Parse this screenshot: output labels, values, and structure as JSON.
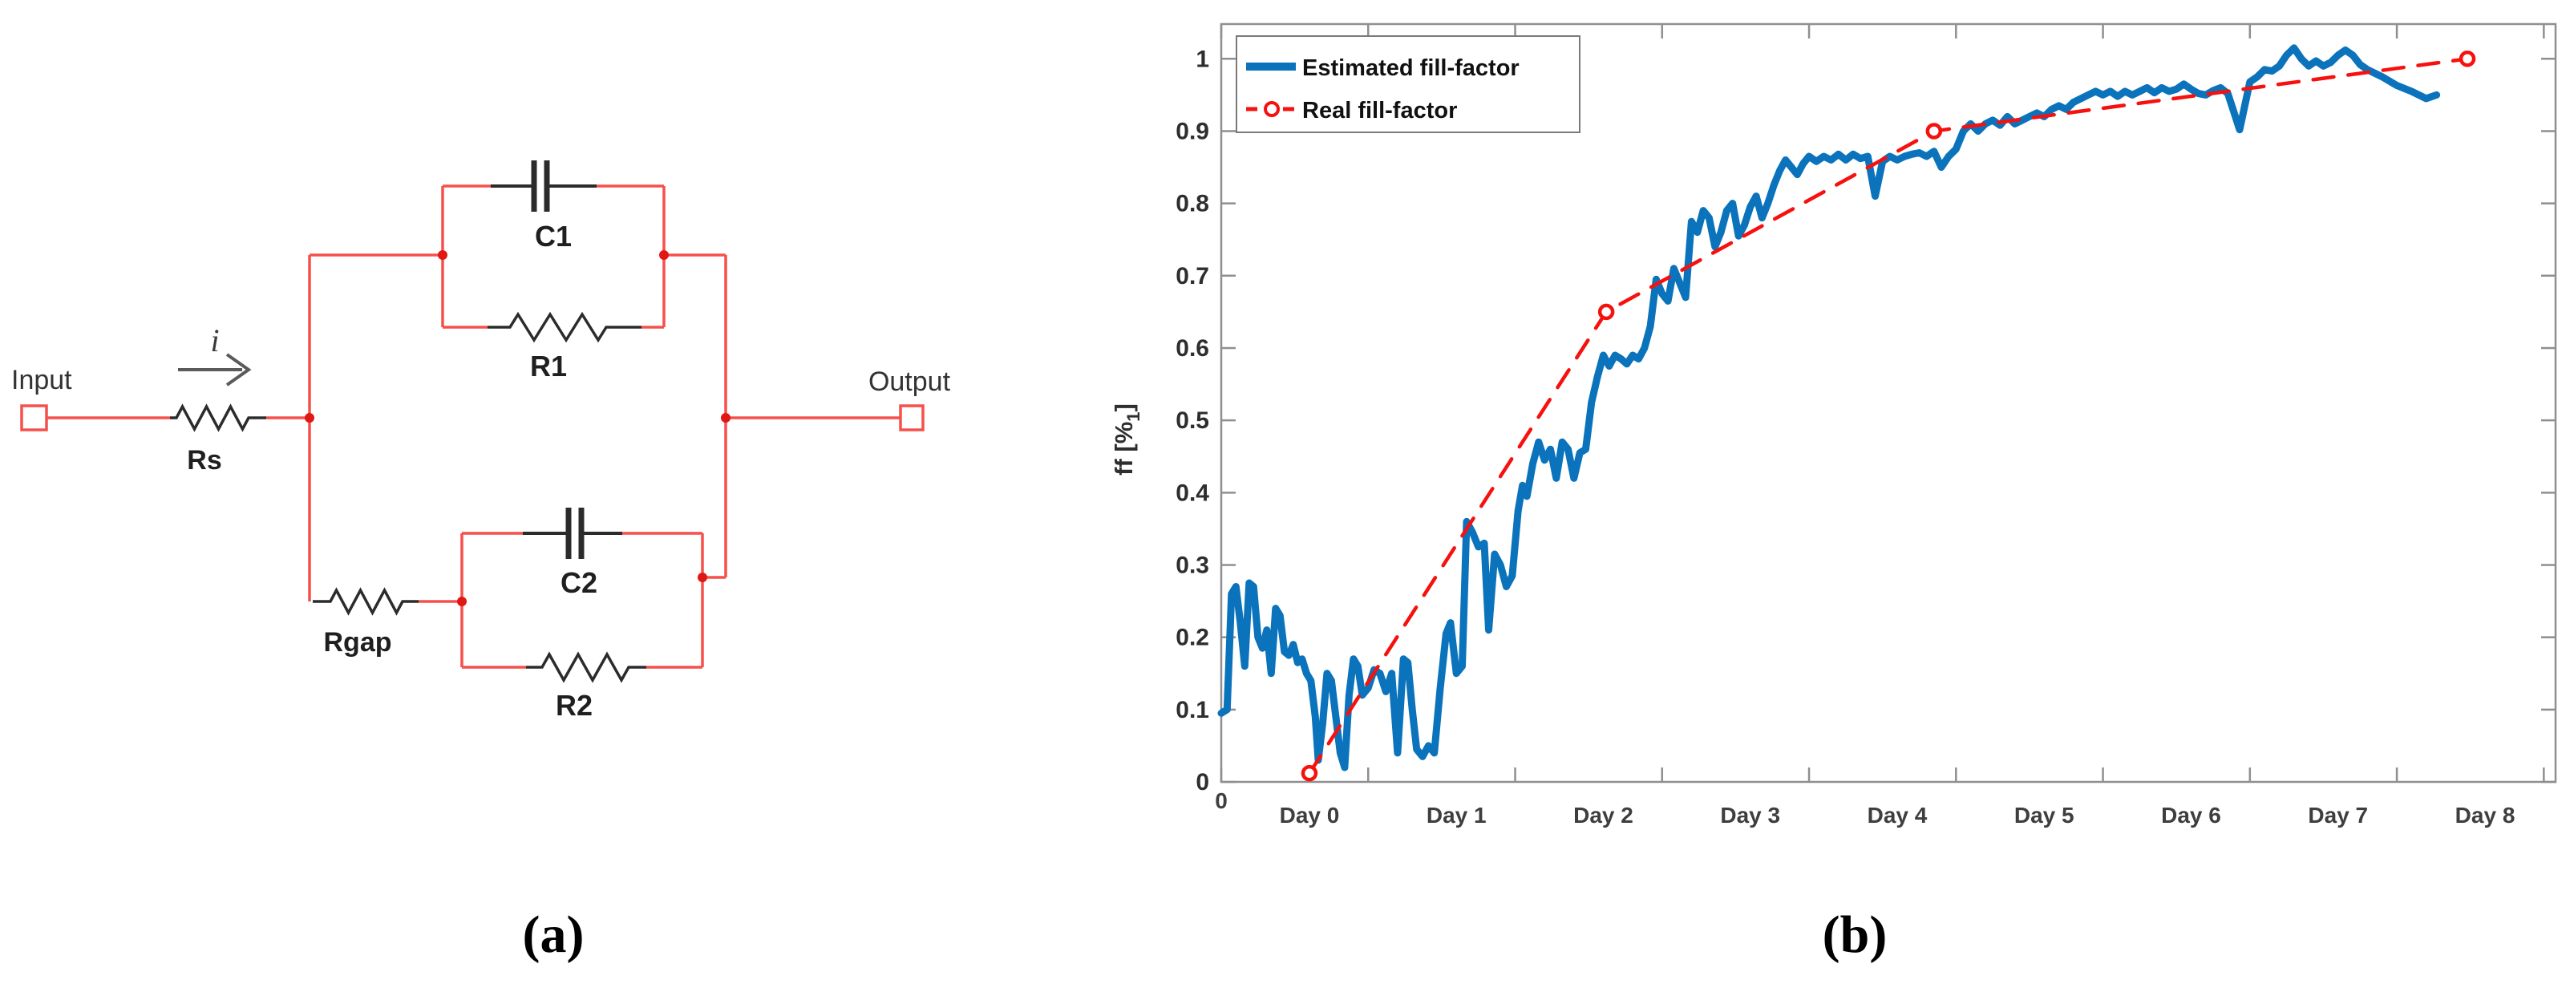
{
  "figure": {
    "panel_a_caption": "(a)",
    "panel_b_caption": "(b)"
  },
  "circuit": {
    "labels": {
      "input": "Input",
      "output": "Output",
      "current": "i",
      "rs": "Rs",
      "c1": "C1",
      "r1": "R1",
      "rgap": "Rgap",
      "c2": "C2",
      "r2": "R2"
    },
    "colors": {
      "wire": "#f6504b",
      "node": "#e01712",
      "component": "#2b2b2b",
      "label": "#333333"
    }
  },
  "chart_data": {
    "type": "line",
    "title": "",
    "xlabel": "",
    "ylabel": {
      "prefix": "ff [%",
      "sub": "1",
      "suffix": "]"
    },
    "xlim": [
      0,
      9.08
    ],
    "ylim": [
      0,
      1.048
    ],
    "grid": false,
    "x_axis": {
      "tick_positions": [
        0,
        1,
        2,
        3,
        4,
        5,
        6,
        7,
        8,
        9
      ],
      "zero_label": "0",
      "zero_label_position": 0,
      "day_labels": [
        "Day 0",
        "Day 1",
        "Day 2",
        "Day 3",
        "Day 4",
        "Day 5",
        "Day 6",
        "Day 7",
        "Day 8"
      ],
      "day_label_positions": [
        0.6,
        1.6,
        2.6,
        3.6,
        4.6,
        5.6,
        6.6,
        7.6,
        8.6
      ]
    },
    "y_axis": {
      "tick_values": [
        0,
        0.1,
        0.2,
        0.3,
        0.4,
        0.5,
        0.6,
        0.7,
        0.8,
        0.9,
        1
      ],
      "tick_labels": [
        "0",
        "0.1",
        "0.2",
        "0.3",
        "0.4",
        "0.5",
        "0.6",
        "0.7",
        "0.8",
        "0.9",
        "1"
      ]
    },
    "legend": {
      "position": "top-left",
      "entries": [
        {
          "label": "Estimated fill-factor",
          "color": "#0a73bb",
          "style": "solid"
        },
        {
          "label": "Real fill-factor",
          "color": "#f6110e",
          "style": "dashed-circle"
        }
      ]
    },
    "series": [
      {
        "name": "Estimated fill-factor",
        "color": "#0a73bb",
        "width": 9,
        "style": "solid",
        "points": [
          [
            0,
            0.095
          ],
          [
            0.04,
            0.1
          ],
          [
            0.07,
            0.26
          ],
          [
            0.1,
            0.27
          ],
          [
            0.13,
            0.22
          ],
          [
            0.16,
            0.16
          ],
          [
            0.19,
            0.275
          ],
          [
            0.22,
            0.27
          ],
          [
            0.25,
            0.2
          ],
          [
            0.28,
            0.185
          ],
          [
            0.31,
            0.21
          ],
          [
            0.34,
            0.15
          ],
          [
            0.37,
            0.24
          ],
          [
            0.4,
            0.23
          ],
          [
            0.43,
            0.18
          ],
          [
            0.46,
            0.175
          ],
          [
            0.49,
            0.19
          ],
          [
            0.52,
            0.165
          ],
          [
            0.55,
            0.17
          ],
          [
            0.58,
            0.15
          ],
          [
            0.61,
            0.14
          ],
          [
            0.64,
            0.09
          ],
          [
            0.66,
            0.03
          ],
          [
            0.69,
            0.08
          ],
          [
            0.72,
            0.15
          ],
          [
            0.75,
            0.14
          ],
          [
            0.78,
            0.09
          ],
          [
            0.81,
            0.04
          ],
          [
            0.84,
            0.02
          ],
          [
            0.87,
            0.12
          ],
          [
            0.9,
            0.17
          ],
          [
            0.93,
            0.16
          ],
          [
            0.96,
            0.12
          ],
          [
            1,
            0.13
          ],
          [
            1.04,
            0.155
          ],
          [
            1.08,
            0.15
          ],
          [
            1.12,
            0.125
          ],
          [
            1.16,
            0.15
          ],
          [
            1.2,
            0.04
          ],
          [
            1.24,
            0.17
          ],
          [
            1.27,
            0.165
          ],
          [
            1.3,
            0.1
          ],
          [
            1.33,
            0.045
          ],
          [
            1.37,
            0.035
          ],
          [
            1.41,
            0.05
          ],
          [
            1.45,
            0.04
          ],
          [
            1.49,
            0.13
          ],
          [
            1.53,
            0.205
          ],
          [
            1.56,
            0.22
          ],
          [
            1.6,
            0.15
          ],
          [
            1.64,
            0.16
          ],
          [
            1.67,
            0.36
          ],
          [
            1.71,
            0.345
          ],
          [
            1.75,
            0.325
          ],
          [
            1.79,
            0.33
          ],
          [
            1.82,
            0.21
          ],
          [
            1.86,
            0.315
          ],
          [
            1.9,
            0.3
          ],
          [
            1.94,
            0.27
          ],
          [
            1.98,
            0.285
          ],
          [
            2.02,
            0.375
          ],
          [
            2.05,
            0.41
          ],
          [
            2.08,
            0.395
          ],
          [
            2.12,
            0.44
          ],
          [
            2.16,
            0.47
          ],
          [
            2.2,
            0.445
          ],
          [
            2.24,
            0.46
          ],
          [
            2.28,
            0.42
          ],
          [
            2.32,
            0.47
          ],
          [
            2.36,
            0.46
          ],
          [
            2.4,
            0.42
          ],
          [
            2.44,
            0.455
          ],
          [
            2.48,
            0.46
          ],
          [
            2.52,
            0.525
          ],
          [
            2.56,
            0.56
          ],
          [
            2.6,
            0.59
          ],
          [
            2.64,
            0.575
          ],
          [
            2.68,
            0.59
          ],
          [
            2.72,
            0.585
          ],
          [
            2.76,
            0.578
          ],
          [
            2.8,
            0.59
          ],
          [
            2.84,
            0.585
          ],
          [
            2.88,
            0.6
          ],
          [
            2.92,
            0.63
          ],
          [
            2.96,
            0.695
          ],
          [
            3,
            0.675
          ],
          [
            3.04,
            0.665
          ],
          [
            3.08,
            0.71
          ],
          [
            3.12,
            0.69
          ],
          [
            3.16,
            0.67
          ],
          [
            3.2,
            0.775
          ],
          [
            3.24,
            0.76
          ],
          [
            3.28,
            0.79
          ],
          [
            3.32,
            0.78
          ],
          [
            3.36,
            0.74
          ],
          [
            3.4,
            0.76
          ],
          [
            3.44,
            0.79
          ],
          [
            3.48,
            0.8
          ],
          [
            3.52,
            0.755
          ],
          [
            3.56,
            0.77
          ],
          [
            3.6,
            0.795
          ],
          [
            3.64,
            0.81
          ],
          [
            3.68,
            0.78
          ],
          [
            3.72,
            0.8
          ],
          [
            3.76,
            0.825
          ],
          [
            3.8,
            0.845
          ],
          [
            3.84,
            0.86
          ],
          [
            3.88,
            0.85
          ],
          [
            3.92,
            0.84
          ],
          [
            3.96,
            0.855
          ],
          [
            4,
            0.865
          ],
          [
            4.05,
            0.858
          ],
          [
            4.1,
            0.865
          ],
          [
            4.15,
            0.86
          ],
          [
            4.2,
            0.868
          ],
          [
            4.25,
            0.86
          ],
          [
            4.3,
            0.868
          ],
          [
            4.35,
            0.862
          ],
          [
            4.4,
            0.865
          ],
          [
            4.45,
            0.81
          ],
          [
            4.5,
            0.858
          ],
          [
            4.55,
            0.865
          ],
          [
            4.6,
            0.86
          ],
          [
            4.65,
            0.865
          ],
          [
            4.7,
            0.868
          ],
          [
            4.75,
            0.87
          ],
          [
            4.8,
            0.865
          ],
          [
            4.85,
            0.872
          ],
          [
            4.9,
            0.85
          ],
          [
            4.95,
            0.865
          ],
          [
            5,
            0.875
          ],
          [
            5.05,
            0.9
          ],
          [
            5.1,
            0.91
          ],
          [
            5.15,
            0.9
          ],
          [
            5.2,
            0.91
          ],
          [
            5.25,
            0.915
          ],
          [
            5.3,
            0.908
          ],
          [
            5.35,
            0.92
          ],
          [
            5.4,
            0.91
          ],
          [
            5.45,
            0.915
          ],
          [
            5.5,
            0.92
          ],
          [
            5.55,
            0.925
          ],
          [
            5.6,
            0.92
          ],
          [
            5.65,
            0.93
          ],
          [
            5.7,
            0.935
          ],
          [
            5.75,
            0.93
          ],
          [
            5.8,
            0.94
          ],
          [
            5.85,
            0.945
          ],
          [
            5.9,
            0.95
          ],
          [
            5.95,
            0.955
          ],
          [
            6,
            0.95
          ],
          [
            6.05,
            0.955
          ],
          [
            6.1,
            0.948
          ],
          [
            6.15,
            0.955
          ],
          [
            6.2,
            0.95
          ],
          [
            6.25,
            0.955
          ],
          [
            6.3,
            0.96
          ],
          [
            6.35,
            0.953
          ],
          [
            6.4,
            0.96
          ],
          [
            6.45,
            0.955
          ],
          [
            6.5,
            0.958
          ],
          [
            6.55,
            0.965
          ],
          [
            6.6,
            0.958
          ],
          [
            6.65,
            0.952
          ],
          [
            6.7,
            0.95
          ],
          [
            6.75,
            0.956
          ],
          [
            6.8,
            0.96
          ],
          [
            6.85,
            0.952
          ],
          [
            6.93,
            0.902
          ],
          [
            7,
            0.968
          ],
          [
            7.05,
            0.975
          ],
          [
            7.1,
            0.985
          ],
          [
            7.15,
            0.983
          ],
          [
            7.2,
            0.99
          ],
          [
            7.25,
            1.005
          ],
          [
            7.3,
            1.015
          ],
          [
            7.35,
            1
          ],
          [
            7.4,
            0.99
          ],
          [
            7.45,
            0.997
          ],
          [
            7.5,
            0.99
          ],
          [
            7.55,
            0.995
          ],
          [
            7.6,
            1.005
          ],
          [
            7.65,
            1.012
          ],
          [
            7.7,
            1.005
          ],
          [
            7.75,
            0.992
          ],
          [
            7.8,
            0.985
          ],
          [
            7.9,
            0.975
          ],
          [
            8,
            0.963
          ],
          [
            8.1,
            0.955
          ],
          [
            8.2,
            0.945
          ],
          [
            8.27,
            0.95
          ]
        ]
      },
      {
        "name": "Real fill-factor",
        "color": "#f6110e",
        "width": 4.5,
        "style": "dashed-circle",
        "points": [
          [
            0.6,
            0.012
          ],
          [
            2.62,
            0.65
          ],
          [
            4.85,
            0.9
          ],
          [
            8.48,
            1.0
          ]
        ]
      }
    ]
  }
}
